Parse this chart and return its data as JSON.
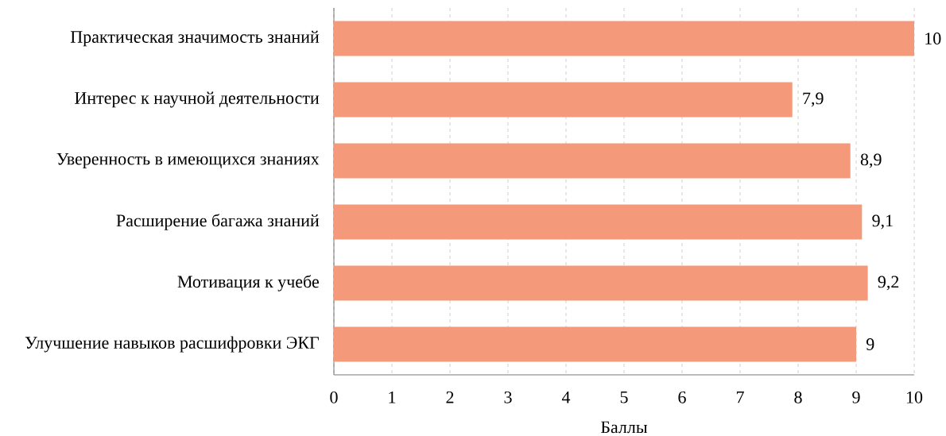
{
  "chart_data": {
    "type": "bar",
    "orientation": "horizontal",
    "xlabel": "Баллы",
    "categories": [
      "Практическая значимость знаний",
      "Интерес к научной деятельности",
      "Уверенность в имеющихся знаниях",
      "Расширение багажа знаний",
      "Мотивация к учебе",
      "Улучшение навыков расшифровки ЭКГ"
    ],
    "values": [
      10,
      7.9,
      8.9,
      9.1,
      9.2,
      9
    ],
    "value_labels": [
      "10",
      "7,9",
      "8,9",
      "9,1",
      "9,2",
      "9"
    ],
    "color": "#f4997a",
    "xlim": [
      0,
      10
    ],
    "xticks": [
      0,
      1,
      2,
      3,
      4,
      5,
      6,
      7,
      8,
      9,
      10
    ],
    "grid": "x"
  }
}
